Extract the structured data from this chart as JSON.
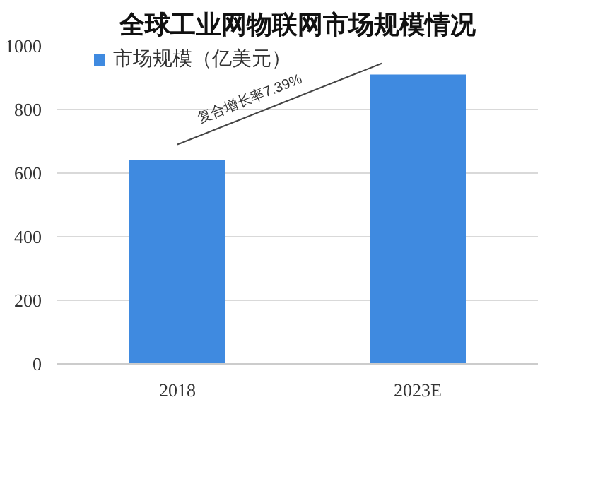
{
  "chart_data": {
    "type": "bar",
    "title": "全球工业网物联网市场规模情况",
    "categories": [
      "2018",
      "2023E"
    ],
    "series": [
      {
        "name": "市场规模（亿美元）",
        "color": "#3f8ae0",
        "values": [
          640,
          910
        ]
      }
    ],
    "ylim": [
      0,
      1000
    ],
    "yticks": [
      0,
      200,
      400,
      600,
      800,
      1000
    ],
    "grid": "y",
    "legend": "top",
    "annotations": [
      "复合增长率7.39%"
    ]
  }
}
